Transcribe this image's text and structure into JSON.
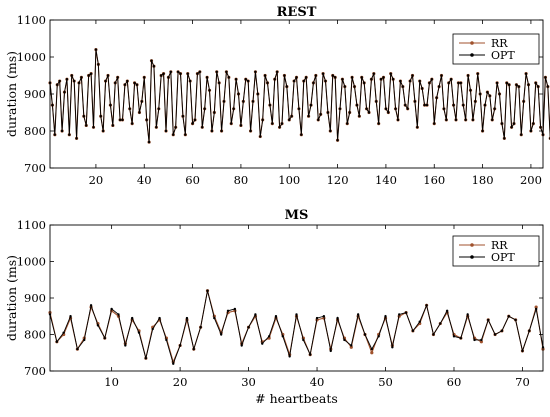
{
  "colors": {
    "rr": "#a0522d",
    "opt": "#000000",
    "axis": "#000000",
    "background": "#ffffff"
  },
  "chart_data": [
    {
      "type": "line",
      "title": "REST",
      "xlabel": "",
      "ylabel": "duration (ms)",
      "xlim": [
        1,
        205
      ],
      "ylim": [
        700,
        1100
      ],
      "xticks": [
        "20",
        "40",
        "60",
        "80",
        "100",
        "120",
        "140",
        "160",
        "180",
        "200"
      ],
      "yticks": [
        "700",
        "800",
        "900",
        "1000",
        "1100"
      ],
      "grid": false,
      "legend_position": "top-right",
      "series": [
        {
          "name": "RR",
          "values": [
            930,
            870,
            790,
            925,
            935,
            800,
            905,
            940,
            790,
            950,
            935,
            780,
            930,
            945,
            840,
            815,
            950,
            955,
            810,
            1020,
            980,
            840,
            800,
            935,
            950,
            870,
            815,
            930,
            945,
            830,
            830,
            925,
            935,
            860,
            820,
            930,
            925,
            850,
            880,
            945,
            830,
            770,
            990,
            975,
            810,
            860,
            950,
            955,
            800,
            945,
            960,
            790,
            810,
            960,
            955,
            840,
            790,
            955,
            935,
            820,
            830,
            955,
            960,
            810,
            860,
            945,
            910,
            800,
            850,
            960,
            930,
            800,
            880,
            960,
            945,
            820,
            860,
            940,
            900,
            815,
            880,
            940,
            935,
            800,
            880,
            960,
            900,
            785,
            830,
            950,
            930,
            870,
            820,
            940,
            960,
            810,
            820,
            950,
            920,
            830,
            840,
            935,
            945,
            860,
            790,
            935,
            945,
            840,
            870,
            930,
            950,
            830,
            845,
            955,
            935,
            850,
            800,
            950,
            945,
            775,
            860,
            940,
            920,
            820,
            850,
            945,
            920,
            870,
            840,
            945,
            930,
            860,
            850,
            940,
            955,
            880,
            820,
            940,
            945,
            860,
            850,
            955,
            940,
            860,
            830,
            935,
            920,
            870,
            860,
            935,
            950,
            880,
            810,
            935,
            915,
            870,
            870,
            930,
            940,
            820,
            890,
            920,
            950,
            860,
            830,
            930,
            940,
            870,
            830,
            930,
            930,
            870,
            830,
            950,
            910,
            830,
            880,
            955,
            900,
            800,
            870,
            905,
            895,
            830,
            860,
            930,
            900,
            820,
            780,
            930,
            925,
            810,
            820,
            925,
            920,
            790,
            880,
            955,
            925,
            800,
            820,
            930,
            920,
            810,
            790,
            945,
            920,
            780,
            860,
            940
          ],
          "color": "#a0522d"
        },
        {
          "name": "OPT",
          "values": [
            930,
            870,
            790,
            925,
            935,
            800,
            905,
            940,
            790,
            950,
            935,
            780,
            930,
            945,
            840,
            815,
            950,
            955,
            810,
            1020,
            980,
            840,
            800,
            935,
            950,
            870,
            815,
            930,
            945,
            830,
            830,
            925,
            935,
            860,
            820,
            930,
            925,
            850,
            880,
            945,
            830,
            770,
            990,
            975,
            810,
            860,
            950,
            955,
            800,
            945,
            960,
            790,
            810,
            960,
            955,
            840,
            790,
            955,
            935,
            820,
            830,
            955,
            960,
            810,
            860,
            945,
            910,
            800,
            850,
            960,
            930,
            800,
            880,
            960,
            945,
            820,
            860,
            940,
            900,
            815,
            880,
            940,
            935,
            800,
            880,
            960,
            900,
            785,
            830,
            950,
            930,
            870,
            820,
            940,
            960,
            810,
            820,
            950,
            920,
            830,
            840,
            935,
            945,
            860,
            790,
            935,
            945,
            840,
            870,
            930,
            950,
            830,
            845,
            955,
            935,
            850,
            800,
            950,
            945,
            775,
            860,
            940,
            920,
            820,
            850,
            945,
            920,
            870,
            840,
            945,
            930,
            860,
            850,
            940,
            955,
            880,
            820,
            940,
            945,
            860,
            850,
            955,
            940,
            860,
            830,
            935,
            920,
            870,
            860,
            935,
            950,
            880,
            810,
            935,
            915,
            870,
            870,
            930,
            940,
            820,
            890,
            920,
            950,
            860,
            830,
            930,
            940,
            870,
            830,
            930,
            930,
            870,
            830,
            950,
            910,
            830,
            880,
            955,
            900,
            800,
            870,
            905,
            895,
            830,
            860,
            930,
            900,
            820,
            780,
            930,
            925,
            810,
            820,
            925,
            920,
            790,
            880,
            955,
            925,
            800,
            820,
            930,
            920,
            810,
            790,
            945,
            920,
            780,
            860,
            940
          ],
          "color": "#000000"
        }
      ]
    },
    {
      "type": "line",
      "title": "MS",
      "xlabel": "# heartbeats",
      "ylabel": "duration (ms)",
      "xlim": [
        1,
        73
      ],
      "ylim": [
        700,
        1100
      ],
      "xticks": [
        "10",
        "20",
        "30",
        "40",
        "50",
        "60",
        "70"
      ],
      "yticks": [
        "700",
        "800",
        "900",
        "1000",
        "1100"
      ],
      "grid": false,
      "legend_position": "top-right",
      "series": [
        {
          "name": "RR",
          "values": [
            860,
            780,
            800,
            845,
            760,
            790,
            875,
            830,
            790,
            865,
            850,
            775,
            840,
            810,
            735,
            820,
            840,
            790,
            725,
            770,
            840,
            760,
            820,
            920,
            850,
            805,
            860,
            865,
            775,
            820,
            850,
            780,
            790,
            845,
            800,
            745,
            850,
            790,
            745,
            840,
            845,
            760,
            840,
            790,
            765,
            850,
            800,
            750,
            800,
            845,
            770,
            850,
            860,
            810,
            830,
            880,
            800,
            830,
            860,
            800,
            790,
            850,
            790,
            780,
            840,
            800,
            810,
            850,
            840,
            755,
            810,
            875,
            760
          ],
          "color": "#a0522d"
        },
        {
          "name": "OPT",
          "values": [
            855,
            780,
            805,
            850,
            760,
            785,
            880,
            825,
            790,
            870,
            855,
            770,
            845,
            805,
            735,
            815,
            845,
            785,
            720,
            770,
            845,
            760,
            820,
            920,
            845,
            800,
            865,
            870,
            770,
            820,
            855,
            775,
            795,
            850,
            795,
            740,
            855,
            785,
            745,
            845,
            850,
            755,
            845,
            785,
            770,
            855,
            800,
            760,
            795,
            850,
            765,
            855,
            860,
            810,
            835,
            880,
            800,
            830,
            865,
            795,
            790,
            855,
            785,
            785,
            840,
            800,
            810,
            850,
            840,
            755,
            810,
            870,
            765
          ],
          "color": "#000000"
        }
      ]
    }
  ]
}
